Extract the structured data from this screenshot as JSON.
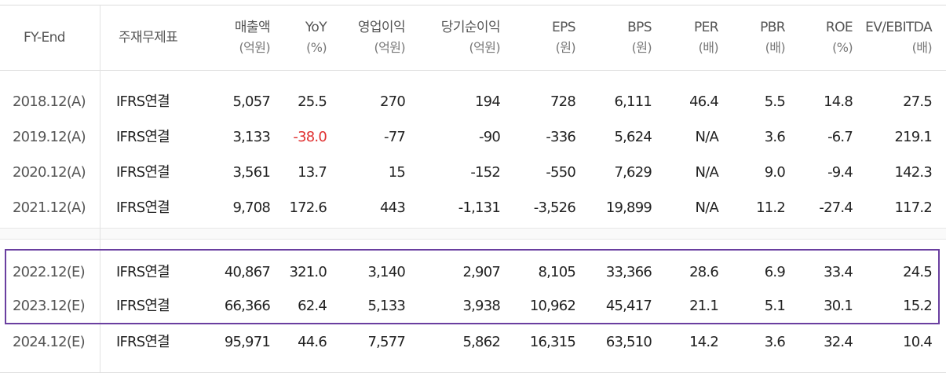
{
  "headers": {
    "fy": {
      "l1": "FY-End"
    },
    "account": {
      "l1": "주재무제표"
    },
    "sales": {
      "l1": "매출액",
      "l2": "(억원)"
    },
    "yoy": {
      "l1": "YoY",
      "l2": "(%)"
    },
    "op": {
      "l1": "영업이익",
      "l2": "(억원)"
    },
    "net": {
      "l1": "당기순이익",
      "l2": "(억원)"
    },
    "eps": {
      "l1": "EPS",
      "l2": "(원)"
    },
    "bps": {
      "l1": "BPS",
      "l2": "(원)"
    },
    "per": {
      "l1": "PER",
      "l2": "(배)"
    },
    "pbr": {
      "l1": "PBR",
      "l2": "(배)"
    },
    "roe": {
      "l1": "ROE",
      "l2": "(%)"
    },
    "ev": {
      "l1": "EV/EBITDA",
      "l2": "(배)"
    }
  },
  "rows": [
    {
      "fy": "2018.12(A)",
      "account": "IFRS연결",
      "sales": "5,057",
      "yoy": "25.5",
      "op": "270",
      "net": "194",
      "eps": "728",
      "bps": "6,111",
      "per": "46.4",
      "pbr": "5.5",
      "roe": "14.8",
      "ev": "27.5"
    },
    {
      "fy": "2019.12(A)",
      "account": "IFRS연결",
      "sales": "3,133",
      "yoy": "-38.0",
      "op": "-77",
      "net": "-90",
      "eps": "-336",
      "bps": "5,624",
      "per": "N/A",
      "pbr": "3.6",
      "roe": "-6.7",
      "ev": "219.1"
    },
    {
      "fy": "2020.12(A)",
      "account": "IFRS연결",
      "sales": "3,561",
      "yoy": "13.7",
      "op": "15",
      "net": "-152",
      "eps": "-550",
      "bps": "7,629",
      "per": "N/A",
      "pbr": "9.0",
      "roe": "-9.4",
      "ev": "142.3"
    },
    {
      "fy": "2021.12(A)",
      "account": "IFRS연결",
      "sales": "9,708",
      "yoy": "172.6",
      "op": "443",
      "net": "-1,131",
      "eps": "-3,526",
      "bps": "19,899",
      "per": "N/A",
      "pbr": "11.2",
      "roe": "-27.4",
      "ev": "117.2"
    },
    {
      "fy": "2022.12(E)",
      "account": "IFRS연결",
      "sales": "40,867",
      "yoy": "321.0",
      "op": "3,140",
      "net": "2,907",
      "eps": "8,105",
      "bps": "33,366",
      "per": "28.6",
      "pbr": "6.9",
      "roe": "33.4",
      "ev": "24.5"
    },
    {
      "fy": "2023.12(E)",
      "account": "IFRS연결",
      "sales": "66,366",
      "yoy": "62.4",
      "op": "5,133",
      "net": "3,938",
      "eps": "10,962",
      "bps": "45,417",
      "per": "21.1",
      "pbr": "5.1",
      "roe": "30.1",
      "ev": "15.2"
    },
    {
      "fy": "2024.12(E)",
      "account": "IFRS연결",
      "sales": "95,971",
      "yoy": "44.6",
      "op": "7,577",
      "net": "5,862",
      "eps": "16,315",
      "bps": "63,510",
      "per": "14.2",
      "pbr": "3.6",
      "roe": "32.4",
      "ev": "10.4"
    }
  ],
  "colors": {
    "negative_highlight": "#e03030",
    "box_border": "#6a3fa0"
  }
}
